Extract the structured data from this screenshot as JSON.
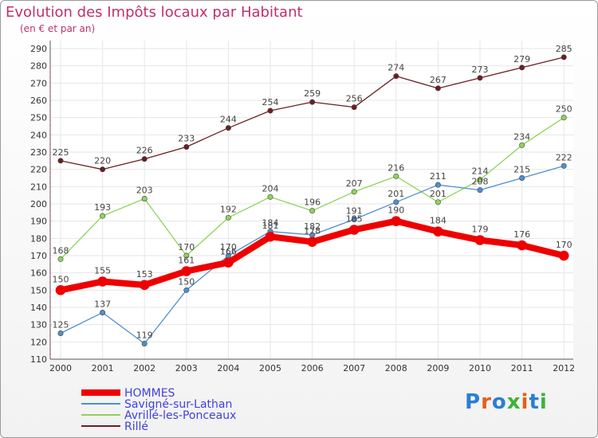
{
  "title": "Evolution des Impôts locaux par Habitant",
  "subtitle": "(en € et par an)",
  "logo_text": "Proxiti",
  "colors": {
    "title": "#c0306b",
    "grid": "#e6e6e6",
    "axis": "#555555",
    "legend_text": "#4040e0",
    "logo": [
      "#2a7fd4",
      "#e2601a",
      "#2a7fd4",
      "#3bb33b",
      "#e2601a",
      "#2a7fd4",
      "#3bb33b"
    ]
  },
  "chart_data": {
    "type": "line",
    "x": [
      "2000",
      "2001",
      "2002",
      "2003",
      "2004",
      "2005",
      "2006",
      "2007",
      "2008",
      "2009",
      "2010",
      "2011",
      "2012"
    ],
    "ylim": [
      110,
      290
    ],
    "yticks": [
      110,
      120,
      130,
      140,
      150,
      160,
      170,
      180,
      190,
      200,
      210,
      220,
      230,
      240,
      250,
      260,
      270,
      280,
      290
    ],
    "grid": true,
    "legend_position": "bottom-left",
    "series": [
      {
        "name": "Rillé",
        "color": "#6b1f23",
        "width": 1.3,
        "marker": 3.2,
        "values": [
          225,
          220,
          226,
          233,
          244,
          254,
          259,
          256,
          274,
          267,
          273,
          279,
          285
        ],
        "labels": [
          "225",
          "220",
          "226",
          "233",
          "244",
          "254",
          "259",
          "256",
          "274",
          "267",
          "273",
          "279",
          "285"
        ]
      },
      {
        "name": "Avrillé-les-Ponceaux",
        "color": "#8fd35a",
        "width": 1.3,
        "marker": 3.2,
        "values": [
          168,
          193,
          203,
          170,
          192,
          204,
          196,
          207,
          216,
          201,
          214,
          234,
          250
        ],
        "labels": [
          "168",
          "193",
          "203",
          "170",
          "192",
          "204",
          "196",
          "207",
          "216",
          "201",
          "214",
          "234",
          "250"
        ]
      },
      {
        "name": "Savigné-sur-Lathan",
        "color": "#4f8fce",
        "width": 1.3,
        "marker": 3.2,
        "values": [
          125,
          137,
          119,
          150,
          170,
          184,
          182,
          191,
          201,
          211,
          208,
          215,
          222
        ],
        "labels": [
          "125",
          "137",
          "119",
          "150",
          "170",
          "184",
          "182",
          "191",
          "201",
          "211",
          "208",
          "215",
          "222"
        ]
      },
      {
        "name": "HOMMES",
        "color": "#ee0000",
        "width": 8,
        "marker": 6,
        "values": [
          150,
          155,
          153,
          161,
          166,
          181,
          178,
          185,
          190,
          184,
          179,
          176,
          170
        ],
        "labels": [
          "150",
          "155",
          "153",
          "161",
          "166",
          "181",
          "178",
          "185",
          "190",
          "184",
          "179",
          "176",
          "170"
        ]
      }
    ],
    "legend": [
      "HOMMES",
      "Savigné-sur-Lathan",
      "Avrillé-les-Ponceaux",
      "Rillé"
    ]
  }
}
